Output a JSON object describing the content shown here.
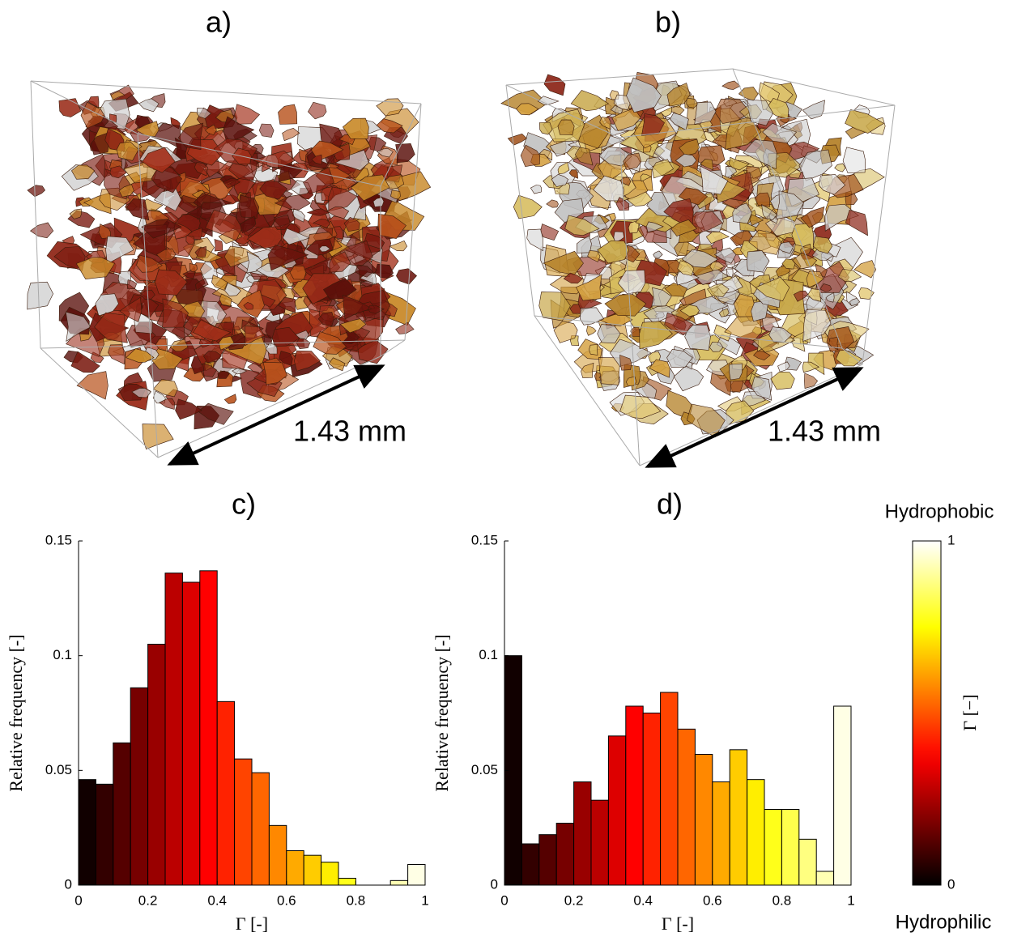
{
  "panels": [
    {
      "label": "a)",
      "scale_label": "1.43 mm"
    },
    {
      "label": "b)",
      "scale_label": "1.43 mm"
    }
  ],
  "chart_data": [
    {
      "type": "histogram",
      "title": "c)",
      "xlabel": "Γ [-]",
      "ylabel": "Relative frequency [-]",
      "bins": [
        0,
        0.05,
        0.1,
        0.15,
        0.2,
        0.25,
        0.3,
        0.35,
        0.4,
        0.45,
        0.5,
        0.55,
        0.6,
        0.65,
        0.7,
        0.75,
        0.8,
        0.85,
        0.9,
        0.95,
        1
      ],
      "values": [
        0.046,
        0.044,
        0.062,
        0.086,
        0.105,
        0.136,
        0.132,
        0.137,
        0.08,
        0.055,
        0.049,
        0.026,
        0.015,
        0.013,
        0.01,
        0.003,
        0.0,
        0.0,
        0.002,
        0.009
      ],
      "colormap": "hot",
      "xlim": [
        0,
        1
      ],
      "ylim": [
        0,
        0.15
      ],
      "xticks": [
        0,
        0.2,
        0.4,
        0.6,
        0.8,
        1
      ],
      "yticks": [
        0,
        0.05,
        0.1,
        0.15
      ]
    },
    {
      "type": "histogram",
      "title": "d)",
      "xlabel": "Γ [-]",
      "ylabel": "Relative frequency [-]",
      "bins": [
        0,
        0.05,
        0.1,
        0.15,
        0.2,
        0.25,
        0.3,
        0.35,
        0.4,
        0.45,
        0.5,
        0.55,
        0.6,
        0.65,
        0.7,
        0.75,
        0.8,
        0.85,
        0.9,
        0.95,
        1
      ],
      "values": [
        0.1,
        0.018,
        0.022,
        0.027,
        0.045,
        0.037,
        0.065,
        0.078,
        0.075,
        0.084,
        0.068,
        0.057,
        0.045,
        0.059,
        0.046,
        0.033,
        0.033,
        0.02,
        0.006,
        0.078
      ],
      "colormap": "hot",
      "xlim": [
        0,
        1
      ],
      "ylim": [
        0,
        0.15
      ],
      "xticks": [
        0,
        0.2,
        0.4,
        0.6,
        0.8,
        1
      ],
      "yticks": [
        0,
        0.05,
        0.1,
        0.15
      ]
    }
  ],
  "colorbar": {
    "label": "Γ [−]",
    "top_label": "Hydrophobic",
    "bottom_label": "Hydrophilic",
    "colormap": "hot",
    "lim": [
      0,
      1
    ],
    "ticks": [
      0,
      1
    ]
  }
}
